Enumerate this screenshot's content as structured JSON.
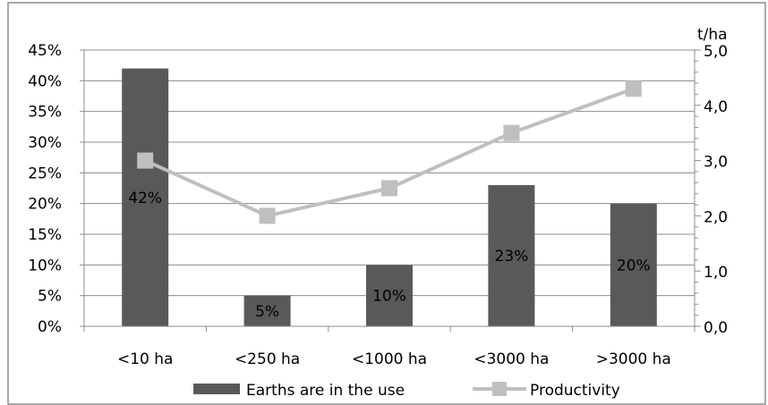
{
  "chart_data": {
    "type": "bar",
    "categories": [
      "<10 ha",
      "<250 ha",
      "<1000 ha",
      "<3000 ha",
      ">3000 ha"
    ],
    "series": [
      {
        "name": "Earths are in the use",
        "type": "bar",
        "axis": "left",
        "values": [
          42,
          5,
          10,
          23,
          20
        ],
        "labels": [
          "42%",
          "5%",
          "10%",
          "23%",
          "20%"
        ],
        "color": "#595959"
      },
      {
        "name": "Productivity",
        "type": "line",
        "axis": "right",
        "values": [
          3.0,
          2.0,
          2.5,
          3.5,
          4.3
        ],
        "color": "#bfbfbf"
      }
    ],
    "y_left": {
      "min": 0,
      "max": 45,
      "step": 5,
      "tick_labels": [
        "0%",
        "5%",
        "10%",
        "15%",
        "20%",
        "25%",
        "30%",
        "35%",
        "40%",
        "45%"
      ]
    },
    "y_right": {
      "title": "t/ha",
      "min": 0,
      "max": 5,
      "step": 1,
      "tick_labels": [
        "0,0",
        "1,0",
        "2,0",
        "3,0",
        "4,0",
        "5,0"
      ]
    },
    "grid": true,
    "legend": "bottom"
  }
}
